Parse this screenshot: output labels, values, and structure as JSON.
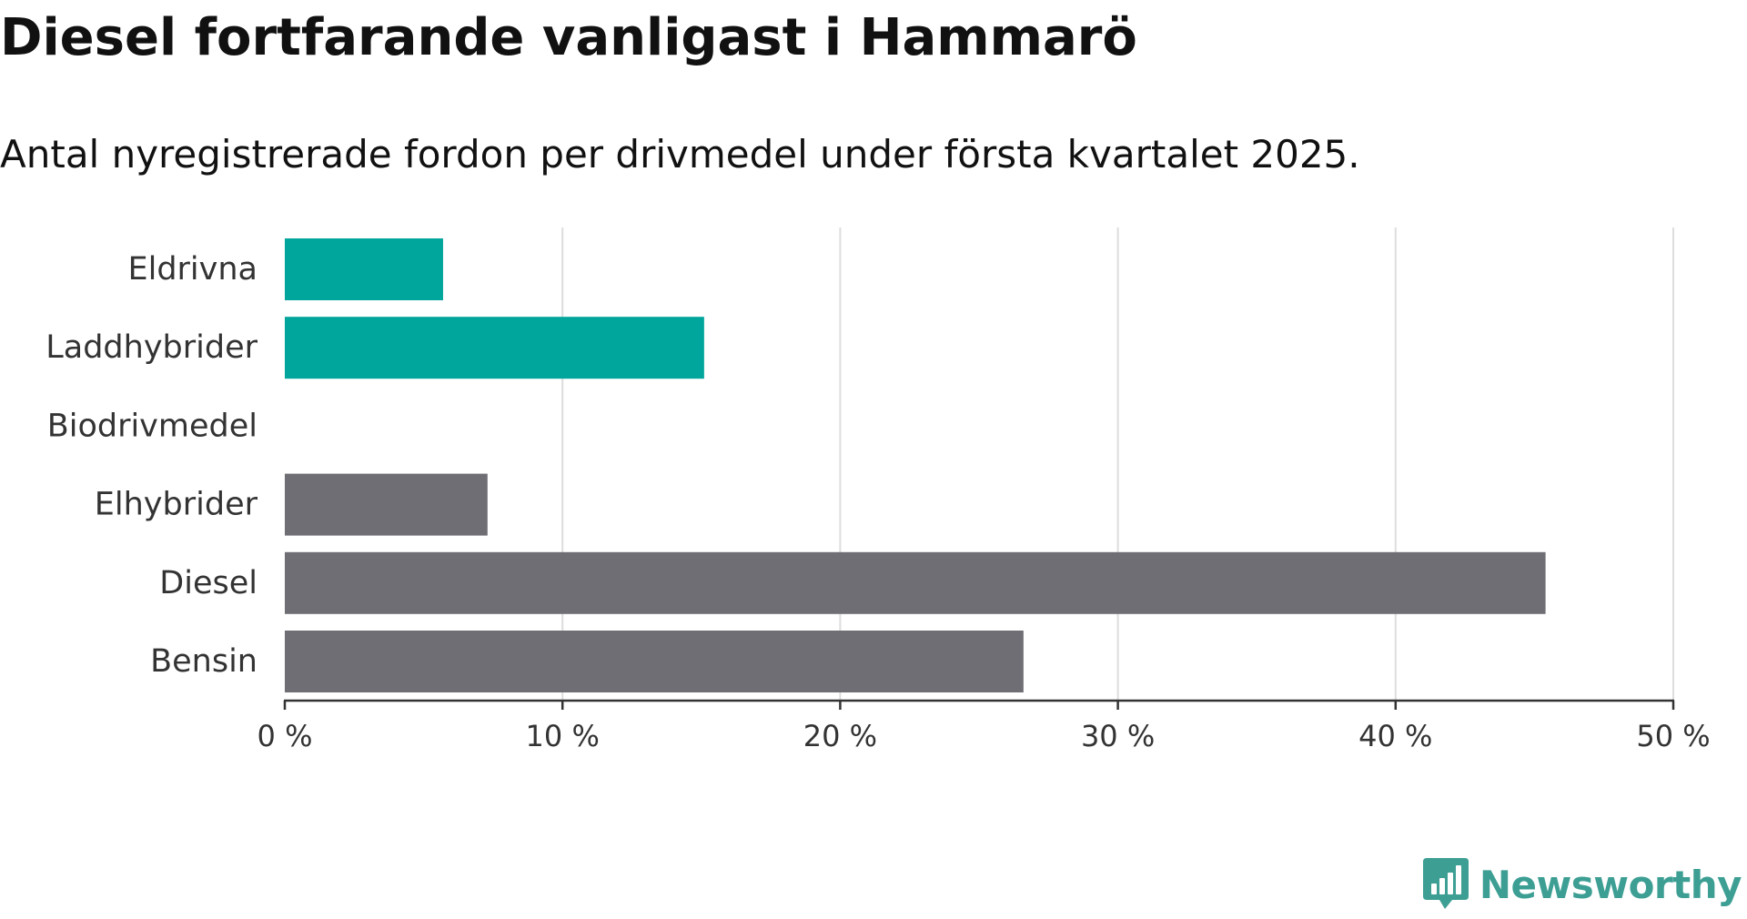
{
  "title": "Diesel fortfarande vanligast i Hammarö",
  "subtitle": "Antal nyregistrerade fordon per drivmedel under första kvartalet 2025.",
  "brand": {
    "name": "Newsworthy",
    "icon": "newsworthy-logo-icon",
    "color": "#3d9f94"
  },
  "colors": {
    "green": "#00a59b",
    "grey": "#6f6e74",
    "grid": "#dddddd",
    "axis": "#333333"
  },
  "chart_data": {
    "type": "bar",
    "orientation": "horizontal",
    "title": "Diesel fortfarande vanligast i Hammarö",
    "subtitle": "Antal nyregistrerade fordon per drivmedel under första kvartalet 2025.",
    "categories": [
      "Eldrivna",
      "Laddhybrider",
      "Biodrivmedel",
      "Elhybrider",
      "Diesel",
      "Bensin"
    ],
    "values": [
      5.7,
      15.1,
      0,
      7.3,
      45.4,
      26.6
    ],
    "bar_colors": [
      "#00a59b",
      "#00a59b",
      "#00a59b",
      "#6f6e74",
      "#6f6e74",
      "#6f6e74"
    ],
    "xlim": [
      0,
      50
    ],
    "xticks": [
      0,
      10,
      20,
      30,
      40,
      50
    ],
    "xtick_labels": [
      "0 %",
      "10 %",
      "20 %",
      "30 %",
      "40 %",
      "50 %"
    ],
    "xlabel": "",
    "ylabel": "",
    "grid": "vertical",
    "legend": "none"
  }
}
